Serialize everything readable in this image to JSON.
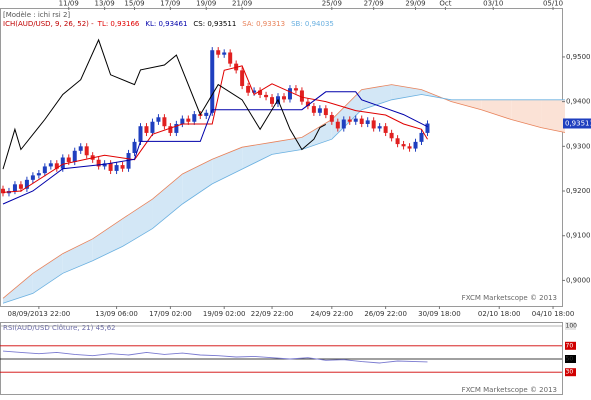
{
  "chart_data": [
    {
      "type": "candlestick",
      "title": "[Modèle : ichi rsi 2]",
      "subtitle": "ICH(AUD/USD, 9, 26, 52) -",
      "watermark": "FXCM Marketscope © 2013",
      "up_color": "#1f3fbf",
      "down_color": "#e02020",
      "open": [
        0.9205,
        0.9195,
        0.92,
        0.9215,
        0.9205,
        0.9225,
        0.9235,
        0.924,
        0.9255,
        0.9262,
        0.925,
        0.9275,
        0.9265,
        0.929,
        0.93,
        0.928,
        0.927,
        0.9255,
        0.9262,
        0.9245,
        0.9258,
        0.925,
        0.9285,
        0.931,
        0.9345,
        0.933,
        0.9355,
        0.9365,
        0.9345,
        0.933,
        0.935,
        0.9362,
        0.9355,
        0.9372,
        0.9368,
        0.9375,
        0.9515,
        0.9505,
        0.951,
        0.9485,
        0.947,
        0.9435,
        0.942,
        0.9425,
        0.9415,
        0.941,
        0.9395,
        0.9412,
        0.9405,
        0.943,
        0.9425,
        0.94,
        0.939,
        0.9375,
        0.9385,
        0.937,
        0.9355,
        0.934,
        0.936,
        0.9355,
        0.9362,
        0.935,
        0.9358,
        0.934,
        0.9345,
        0.933,
        0.9318,
        0.9305,
        0.93,
        0.9295,
        0.931,
        0.933
      ],
      "high": [
        0.9212,
        0.9207,
        0.9222,
        0.9222,
        0.9232,
        0.9242,
        0.9247,
        0.9262,
        0.9269,
        0.9269,
        0.9282,
        0.9282,
        0.9297,
        0.9307,
        0.9307,
        0.9287,
        0.9277,
        0.9269,
        0.9269,
        0.9265,
        0.9265,
        0.9292,
        0.9317,
        0.9352,
        0.9352,
        0.9362,
        0.9372,
        0.9372,
        0.9352,
        0.9357,
        0.9369,
        0.9369,
        0.9379,
        0.9379,
        0.9382,
        0.9522,
        0.9522,
        0.9517,
        0.9517,
        0.9492,
        0.9477,
        0.9442,
        0.9432,
        0.9432,
        0.9422,
        0.9417,
        0.9419,
        0.9419,
        0.9437,
        0.9437,
        0.9432,
        0.9407,
        0.9397,
        0.9392,
        0.9392,
        0.9377,
        0.9362,
        0.9367,
        0.9367,
        0.9369,
        0.9369,
        0.9365,
        0.9365,
        0.9352,
        0.9352,
        0.9337,
        0.9325,
        0.9312,
        0.9307,
        0.9317,
        0.9337,
        0.9358
      ],
      "low": [
        0.9188,
        0.9188,
        0.9193,
        0.9198,
        0.9198,
        0.9218,
        0.9228,
        0.9233,
        0.9248,
        0.9243,
        0.9243,
        0.9258,
        0.9258,
        0.9283,
        0.9273,
        0.9263,
        0.9248,
        0.9248,
        0.9238,
        0.9238,
        0.9243,
        0.9243,
        0.9278,
        0.9303,
        0.9323,
        0.9323,
        0.9348,
        0.9338,
        0.9323,
        0.9323,
        0.9343,
        0.9348,
        0.9348,
        0.9361,
        0.9361,
        0.9368,
        0.9498,
        0.9498,
        0.9478,
        0.9463,
        0.9428,
        0.9413,
        0.9413,
        0.9408,
        0.9403,
        0.9388,
        0.9388,
        0.9398,
        0.9398,
        0.9418,
        0.9393,
        0.9383,
        0.9368,
        0.9368,
        0.9363,
        0.9348,
        0.9333,
        0.9333,
        0.9348,
        0.9348,
        0.9343,
        0.9343,
        0.9333,
        0.9333,
        0.9323,
        0.9311,
        0.9298,
        0.9293,
        0.9288,
        0.9288,
        0.9303,
        0.9323
      ],
      "close": [
        0.9195,
        0.92,
        0.9215,
        0.9205,
        0.9225,
        0.9235,
        0.924,
        0.9255,
        0.9262,
        0.925,
        0.9275,
        0.9265,
        0.929,
        0.93,
        0.928,
        0.927,
        0.9255,
        0.9262,
        0.9245,
        0.9258,
        0.925,
        0.9285,
        0.931,
        0.9345,
        0.933,
        0.9355,
        0.9365,
        0.9345,
        0.933,
        0.935,
        0.9362,
        0.9355,
        0.9372,
        0.9368,
        0.9375,
        0.9515,
        0.9505,
        0.951,
        0.9485,
        0.947,
        0.9435,
        0.942,
        0.9425,
        0.9415,
        0.941,
        0.9395,
        0.9412,
        0.9405,
        0.943,
        0.9425,
        0.94,
        0.939,
        0.9375,
        0.9385,
        0.937,
        0.9355,
        0.934,
        0.936,
        0.9355,
        0.9362,
        0.935,
        0.9358,
        0.934,
        0.9345,
        0.933,
        0.9318,
        0.9305,
        0.93,
        0.9295,
        0.931,
        0.933,
        0.9351
      ],
      "series": [
        {
          "name": "TL: 0,93166",
          "color": "#e00000",
          "x": [
            0,
            3,
            10,
            17,
            22,
            25,
            30,
            35,
            37,
            40,
            42,
            45,
            50,
            54,
            59,
            64,
            67,
            70,
            71
          ],
          "values": [
            0.9197,
            0.92,
            0.926,
            0.928,
            0.927,
            0.9327,
            0.935,
            0.935,
            0.947,
            0.948,
            0.9416,
            0.944,
            0.941,
            0.94,
            0.938,
            0.937,
            0.935,
            0.9338,
            0.9316
          ]
        },
        {
          "name": "KL: 0,93461",
          "color": "#0000aa",
          "x": [
            0,
            5,
            10,
            17,
            22,
            23,
            33,
            35,
            50,
            54,
            59,
            60,
            67,
            71
          ],
          "values": [
            0.9171,
            0.92,
            0.925,
            0.926,
            0.9271,
            0.9311,
            0.9311,
            0.9382,
            0.9382,
            0.9422,
            0.9422,
            0.9404,
            0.9371,
            0.9344
          ]
        },
        {
          "name": "CS: 0,93511",
          "color": "#000000",
          "x": [
            0,
            2,
            3,
            7,
            10,
            13,
            16,
            18,
            22,
            23,
            27,
            29,
            33,
            36,
            40,
            43,
            46,
            48,
            50,
            52,
            53,
            54
          ],
          "values": [
            0.9249,
            0.9338,
            0.9293,
            0.936,
            0.9416,
            0.9449,
            0.9538,
            0.946,
            0.9438,
            0.9471,
            0.9482,
            0.9504,
            0.9371,
            0.9438,
            0.9404,
            0.9338,
            0.9404,
            0.9338,
            0.9293,
            0.9316,
            0.9342,
            0.9349
          ]
        }
      ],
      "cloud": {
        "bull_fill": "#d3e7f6",
        "bear_fill": "#fbe2d6",
        "span_a": {
          "name": "SA: 0,93313",
          "color": "#e8825a",
          "x": [
            0,
            5,
            10,
            15,
            20,
            25,
            30,
            35,
            40,
            45,
            50,
            55,
            60,
            65,
            70,
            75,
            80,
            85,
            90,
            94
          ],
          "values": [
            0.896,
            0.9016,
            0.906,
            0.9093,
            0.9138,
            0.9182,
            0.9238,
            0.9271,
            0.9298,
            0.9309,
            0.932,
            0.936,
            0.9427,
            0.9438,
            0.9427,
            0.94,
            0.9382,
            0.936,
            0.9342,
            0.9331
          ]
        },
        "span_b": {
          "name": "SB: 0,94035",
          "color": "#6ab0e0",
          "x": [
            0,
            5,
            10,
            15,
            20,
            25,
            30,
            35,
            40,
            45,
            50,
            55,
            60,
            65,
            70,
            75,
            80,
            85,
            90,
            94
          ],
          "values": [
            0.8949,
            0.8971,
            0.9016,
            0.9044,
            0.9076,
            0.9116,
            0.9171,
            0.9216,
            0.9249,
            0.9282,
            0.9293,
            0.9316,
            0.9382,
            0.9404,
            0.9416,
            0.9404,
            0.9404,
            0.9404,
            0.9404,
            0.9404
          ]
        }
      },
      "last": {
        "value": 0.93511,
        "label": "0,93511"
      },
      "ylim": [
        0.8945,
        0.9605
      ],
      "yticks": [
        {
          "value": 0.9,
          "label": "0,9000"
        },
        {
          "value": 0.91,
          "label": "0,9100"
        },
        {
          "value": 0.92,
          "label": "0,9200"
        },
        {
          "value": 0.93,
          "label": "0,9300"
        },
        {
          "value": 0.94,
          "label": "0,9400"
        },
        {
          "value": 0.95,
          "label": "0,9500"
        }
      ],
      "xlim": [
        -0.5,
        93.5
      ],
      "xticks_top": [
        {
          "value": 11,
          "label": "11/09"
        },
        {
          "value": 17,
          "label": "13/09"
        },
        {
          "value": 22,
          "label": "15/09"
        },
        {
          "value": 28,
          "label": "17/09"
        },
        {
          "value": 34,
          "label": "19/09"
        },
        {
          "value": 40,
          "label": "21/09"
        },
        {
          "value": 55,
          "label": "25/09"
        },
        {
          "value": 62,
          "label": "27/09"
        },
        {
          "value": 69,
          "label": "29/09"
        },
        {
          "value": 74,
          "label": "Oct"
        },
        {
          "value": 82,
          "label": "03/10"
        },
        {
          "value": 92,
          "label": "05/10"
        }
      ],
      "xticks": [
        {
          "value": 6,
          "label": "08/09/2013 22:00"
        },
        {
          "value": 19,
          "label": "13/09 06:00"
        },
        {
          "value": 28,
          "label": "17/09 02:00"
        },
        {
          "value": 37,
          "label": "19/09 02:00"
        },
        {
          "value": 45,
          "label": "22/09 22:00"
        },
        {
          "value": 55,
          "label": "24/09 22:00"
        },
        {
          "value": 64,
          "label": "26/09 22:00"
        },
        {
          "value": 73,
          "label": "30/09 18:00"
        },
        {
          "value": 83,
          "label": "02/10 18:00"
        },
        {
          "value": 92,
          "label": "04/10 18:00"
        }
      ]
    },
    {
      "type": "line",
      "title": "RSI(AUD/USD Clôture, 21) 45,62",
      "watermark": "FXCM Marketscope © 2013",
      "series": [
        {
          "color": "#7a7ad0",
          "x": [
            0,
            3,
            6,
            9,
            12,
            15,
            18,
            21,
            24,
            27,
            30,
            33,
            36,
            39,
            42,
            45,
            48,
            51,
            54,
            57,
            60,
            63,
            66,
            69,
            71
          ],
          "values": [
            62,
            60,
            58,
            60,
            57,
            55,
            58,
            56,
            60,
            57,
            59,
            56,
            55,
            53,
            54,
            52,
            50,
            52,
            48,
            49,
            46,
            44,
            47,
            46,
            45.62
          ]
        }
      ],
      "xlim": [
        -0.5,
        93.5
      ],
      "ylim": [
        0,
        100
      ],
      "yticks": [
        100,
        70,
        50,
        30
      ],
      "ytick_colors": [
        "#9a9a9a",
        "#d00000",
        "#000000",
        "#d00000"
      ]
    }
  ]
}
